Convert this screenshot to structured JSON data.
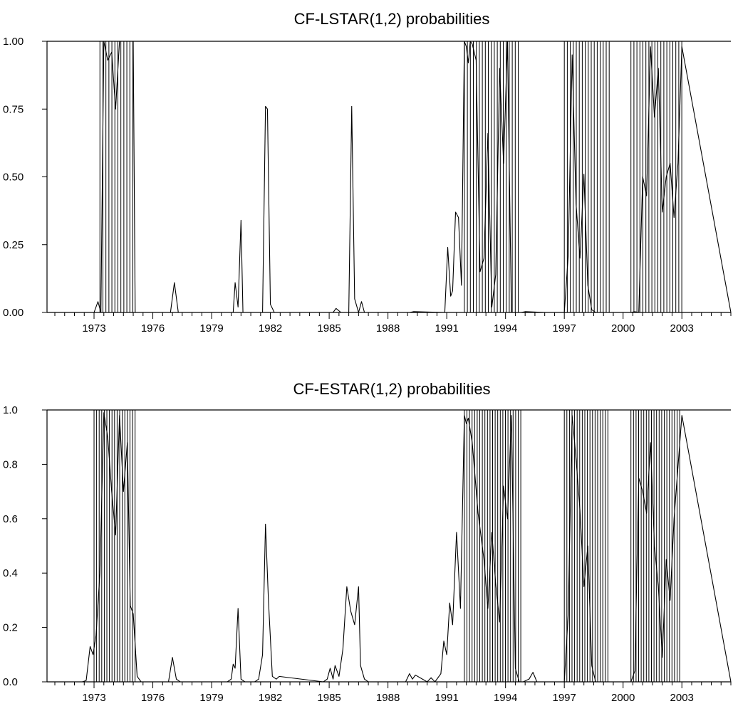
{
  "chart_data": [
    {
      "type": "line",
      "title": "CF-LSTAR(1,2) probabilities",
      "xlabel": "",
      "ylabel": "",
      "xlim": [
        1970.6,
        2005.5
      ],
      "ylim": [
        0,
        1
      ],
      "x_ticks": [
        "1973",
        "1976",
        "1979",
        "1982",
        "1985",
        "1988",
        "1991",
        "1994",
        "1997",
        "2000",
        "2003"
      ],
      "y_ticks": [
        "0.00",
        "0.25",
        "0.50",
        "0.75",
        "1.00"
      ],
      "grid": false,
      "shaded_regions": [
        {
          "start": 1973.3,
          "end": 1975.1
        },
        {
          "start": 1991.9,
          "end": 1994.8
        },
        {
          "start": 1997.0,
          "end": 1999.3
        },
        {
          "start": 2000.4,
          "end": 2003.0
        }
      ],
      "series": [
        {
          "x": [
            1971.0,
            1973.0,
            1973.2,
            1973.35,
            1973.5,
            1973.7,
            1973.9,
            1974.1,
            1974.3,
            1974.5,
            1974.7,
            1975.0,
            1975.1,
            1975.3,
            1976.9,
            1977.1,
            1977.3,
            1980.1,
            1980.2,
            1980.35,
            1980.5,
            1980.6,
            1981.6,
            1981.75,
            1981.85,
            1982.0,
            1982.2,
            1985.0,
            1985.2,
            1985.35,
            1985.6,
            1986.0,
            1986.15,
            1986.3,
            1986.5,
            1986.65,
            1986.8,
            1989.1,
            1989.3,
            1990.9,
            1991.05,
            1991.2,
            1991.3,
            1991.45,
            1991.6,
            1991.75,
            1991.9,
            1992.0,
            1992.1,
            1992.2,
            1992.3,
            1992.5,
            1992.7,
            1992.9,
            1993.1,
            1993.3,
            1993.5,
            1993.7,
            1993.9,
            1994.1,
            1994.3,
            1994.5,
            1994.7,
            1994.8,
            1995.0,
            1996.0,
            1996.2,
            1997.0,
            1997.2,
            1997.4,
            1997.6,
            1997.8,
            1998.0,
            1998.2,
            1998.4,
            1998.6,
            1998.8,
            1999.0,
            1999.3,
            2000.4,
            2000.6,
            2000.8,
            2001.0,
            2001.2,
            2001.4,
            2001.6,
            2001.8,
            2002.0,
            2002.2,
            2002.4,
            2002.6,
            2002.8,
            2003.0,
            2005.5
          ],
          "values": [
            0,
            0,
            0.04,
            0,
            1.0,
            0.93,
            0.96,
            0.75,
            1.0,
            1.0,
            1.0,
            1.0,
            0,
            0,
            0,
            0.11,
            0,
            0,
            0.11,
            0.02,
            0.34,
            0,
            0,
            0.76,
            0.75,
            0.03,
            0,
            0,
            0,
            0.015,
            0,
            0,
            0.76,
            0.05,
            0,
            0.04,
            0,
            0,
            0.003,
            0,
            0.24,
            0.06,
            0.08,
            0.37,
            0.35,
            0.1,
            1.0,
            0.98,
            0.92,
            1.0,
            0.99,
            0.93,
            0.15,
            0.2,
            0.66,
            0.02,
            0.14,
            0.9,
            0.55,
            1.0,
            0,
            0,
            0,
            0,
            0.003,
            0,
            0,
            0,
            0.21,
            0.95,
            0.4,
            0.2,
            0.51,
            0.1,
            0.01,
            0,
            0,
            0,
            0,
            0,
            0.003,
            0,
            0.5,
            0.43,
            0.98,
            0.72,
            0.9,
            0.37,
            0.5,
            0.55,
            0.35,
            0.55,
            0.98,
            0
          ]
        }
      ]
    },
    {
      "type": "line",
      "title": "CF-ESTAR(1,2) probabilities",
      "xlabel": "",
      "ylabel": "",
      "xlim": [
        1970.6,
        2005.5
      ],
      "ylim": [
        0,
        1
      ],
      "x_ticks": [
        "1973",
        "1976",
        "1979",
        "1982",
        "1985",
        "1988",
        "1991",
        "1994",
        "1997",
        "2000",
        "2003"
      ],
      "y_ticks": [
        "0.0",
        "0.2",
        "0.4",
        "0.6",
        "0.8",
        "1.0"
      ],
      "grid": false,
      "shaded_regions": [
        {
          "start": 1973.0,
          "end": 1975.2
        },
        {
          "start": 1991.9,
          "end": 1994.8
        },
        {
          "start": 1997.0,
          "end": 1999.3
        },
        {
          "start": 2000.4,
          "end": 2003.0
        }
      ],
      "series": [
        {
          "x": [
            1971.0,
            1972.4,
            1972.6,
            1972.8,
            1972.95,
            1973.1,
            1973.3,
            1973.5,
            1973.7,
            1973.9,
            1974.1,
            1974.3,
            1974.5,
            1974.7,
            1974.85,
            1975.0,
            1975.2,
            1975.4,
            1976.8,
            1977.0,
            1977.2,
            1977.4,
            1979.8,
            1980.0,
            1980.1,
            1980.2,
            1980.35,
            1980.5,
            1980.7,
            1981.2,
            1981.4,
            1981.6,
            1981.75,
            1981.9,
            1982.1,
            1982.3,
            1982.45,
            1984.7,
            1984.9,
            1985.05,
            1985.2,
            1985.3,
            1985.5,
            1985.7,
            1985.9,
            1986.1,
            1986.3,
            1986.5,
            1986.6,
            1986.8,
            1987.0,
            1988.9,
            1989.1,
            1989.25,
            1989.4,
            1990.0,
            1990.2,
            1990.4,
            1990.7,
            1990.85,
            1991.0,
            1991.15,
            1991.3,
            1991.5,
            1991.7,
            1991.9,
            1992.0,
            1992.1,
            1992.3,
            1992.6,
            1992.9,
            1993.1,
            1993.3,
            1993.5,
            1993.7,
            1993.9,
            1994.1,
            1994.3,
            1994.5,
            1994.7,
            1994.9,
            1995.2,
            1995.4,
            1995.6,
            1996.6,
            1997.0,
            1997.2,
            1997.4,
            1997.6,
            1997.8,
            1998.0,
            1998.2,
            1998.4,
            1998.6,
            1998.8,
            1999.1,
            1999.3,
            2000.4,
            2000.6,
            2000.8,
            2001.0,
            2001.2,
            2001.4,
            2001.6,
            2001.8,
            2002.0,
            2002.2,
            2002.4,
            2002.6,
            2003.0,
            2005.5
          ],
          "values": [
            0,
            0,
            0.005,
            0.13,
            0.1,
            0.17,
            0.4,
            0.99,
            0.9,
            0.7,
            0.54,
            0.98,
            0.7,
            0.88,
            0.28,
            0.25,
            0.02,
            0,
            0,
            0.09,
            0.01,
            0,
            0,
            0.01,
            0.065,
            0.05,
            0.27,
            0.01,
            0,
            0,
            0.01,
            0.1,
            0.58,
            0.3,
            0.02,
            0.01,
            0.02,
            0,
            0.01,
            0.05,
            0.01,
            0.06,
            0.02,
            0.12,
            0.35,
            0.26,
            0.21,
            0.35,
            0.06,
            0.01,
            0,
            0,
            0.03,
            0.01,
            0.025,
            0,
            0.015,
            0,
            0.03,
            0.15,
            0.1,
            0.29,
            0.21,
            0.55,
            0.27,
            0.98,
            0.95,
            0.97,
            0.88,
            0.62,
            0.45,
            0.27,
            0.55,
            0.36,
            0.22,
            0.72,
            0.6,
            0.98,
            0.05,
            0,
            0,
            0.01,
            0.035,
            0,
            0,
            0,
            0.25,
            0.98,
            0.82,
            0.63,
            0.35,
            0.5,
            0.06,
            0,
            0,
            0,
            0,
            0,
            0.04,
            0.75,
            0.7,
            0.62,
            0.88,
            0.5,
            0.35,
            0.09,
            0.45,
            0.3,
            0.6,
            0.98,
            0
          ]
        }
      ]
    }
  ]
}
